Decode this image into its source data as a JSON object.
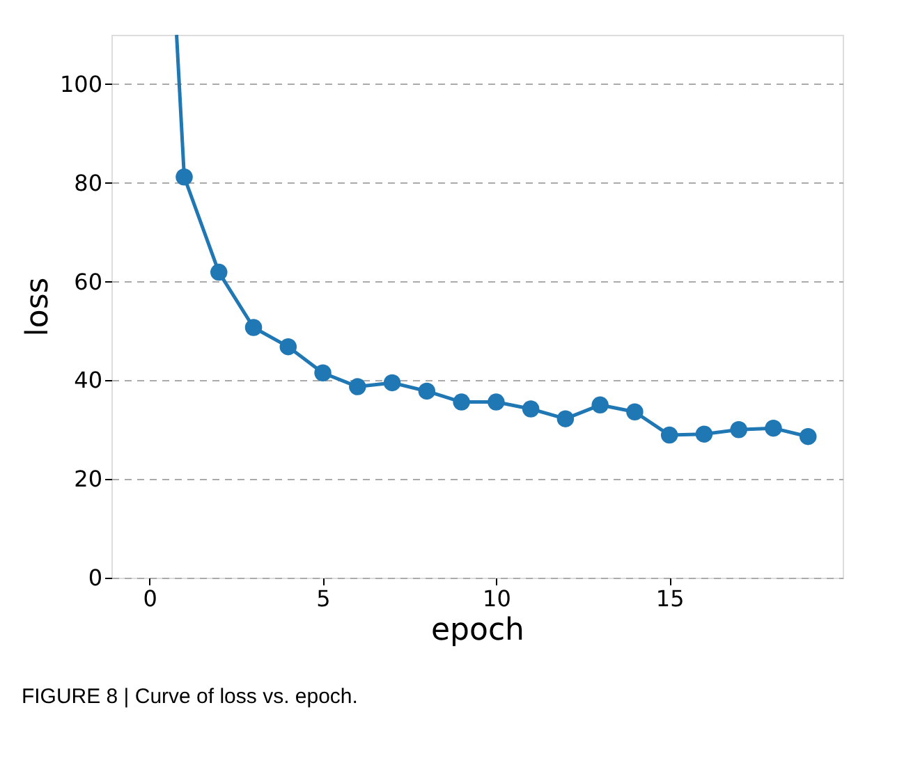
{
  "chart_data": {
    "type": "line",
    "xlabel": "epoch",
    "ylabel": "loss",
    "xlim": [
      -1.1,
      20
    ],
    "ylim": [
      0,
      110
    ],
    "xticks": [
      0,
      5,
      10,
      15
    ],
    "yticks": [
      0,
      20,
      40,
      60,
      80,
      100
    ],
    "grid": "y",
    "series": [
      {
        "color": "#1f77b4",
        "x": [
          0.78,
          1
        ],
        "values": [
          110,
          81.2
        ]
      },
      {
        "color": "#1f77b4",
        "marker": "circle",
        "x": [
          1,
          2,
          3,
          4,
          5,
          6,
          7,
          8,
          9,
          10,
          11,
          12,
          13,
          14,
          15,
          16,
          17,
          18,
          19
        ],
        "values": [
          81.2,
          61.9,
          50.7,
          46.8,
          41.5,
          38.7,
          39.5,
          37.8,
          35.6,
          35.6,
          34.2,
          32.2,
          35.0,
          33.6,
          28.9,
          29.1,
          30.0,
          30.3,
          28.6
        ]
      }
    ],
    "annotations": [
      "FIGURE 8 | Curve of loss vs. epoch."
    ]
  }
}
